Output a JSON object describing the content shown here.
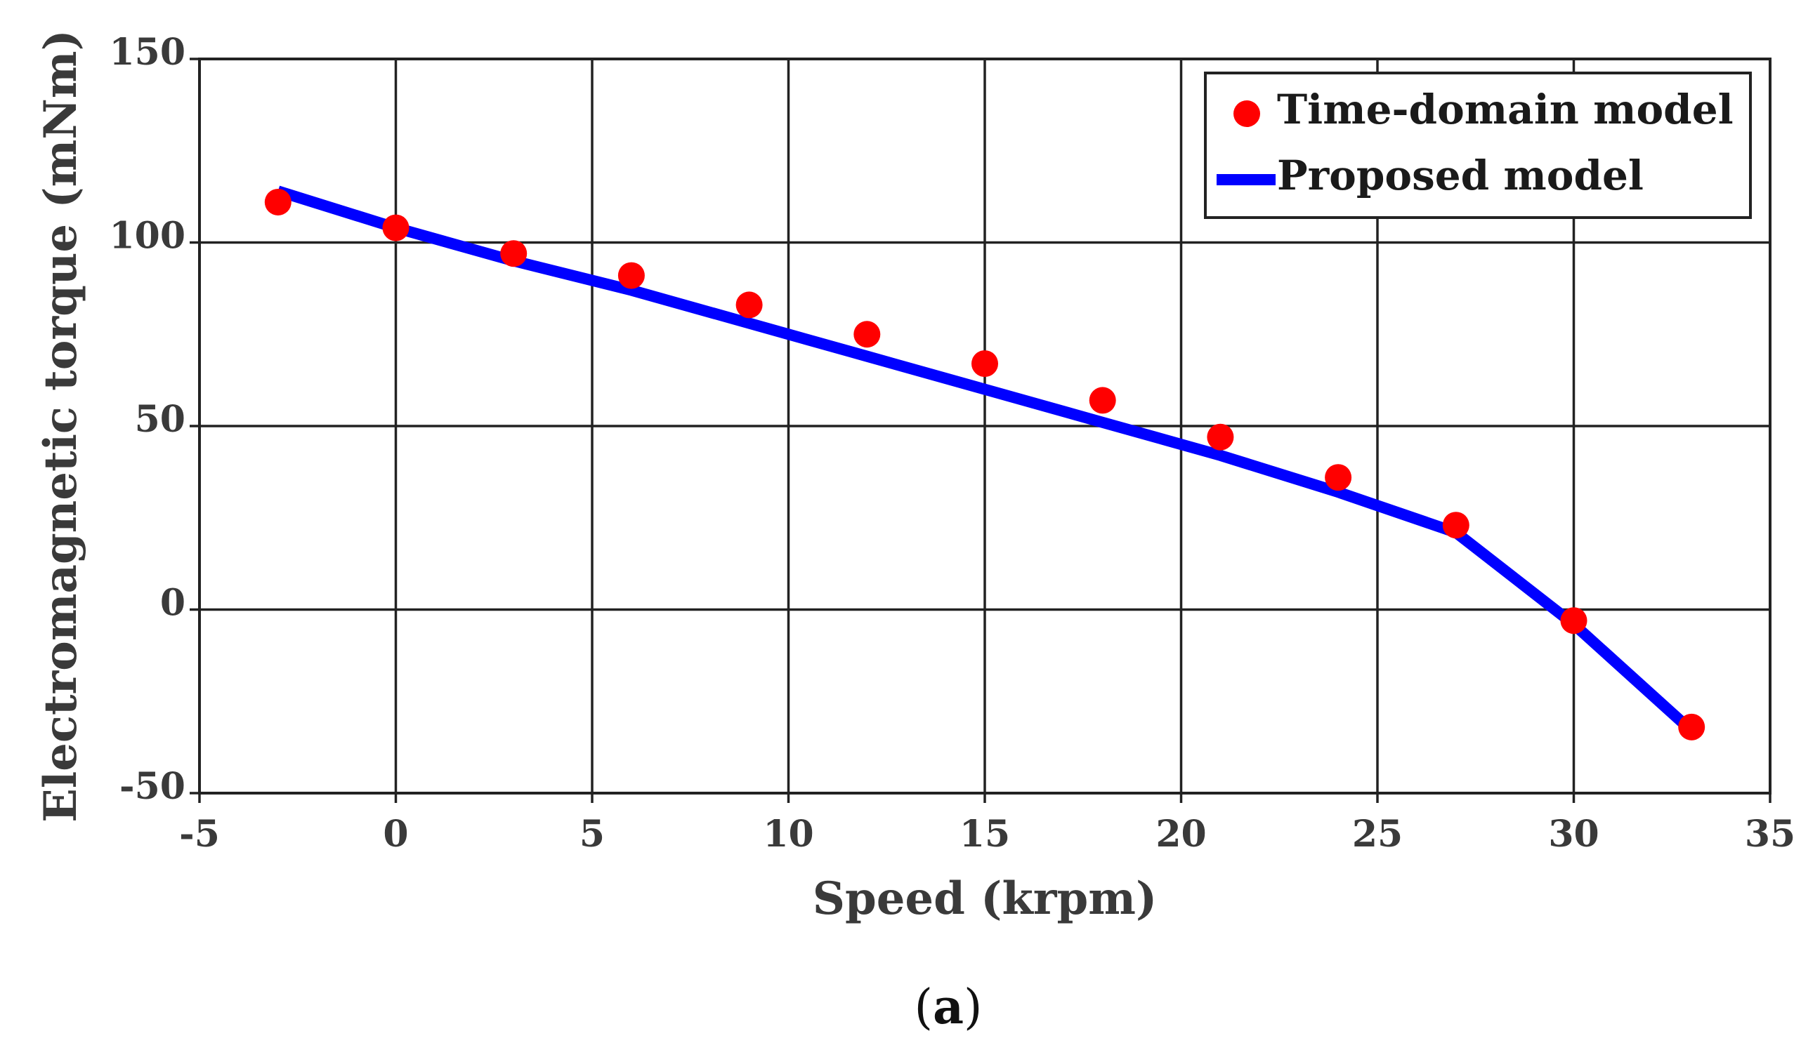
{
  "chart_data": {
    "type": "line",
    "xlabel": "Speed (krpm)",
    "ylabel": "Electromagnetic torque (mNm)",
    "xlim": [
      -5,
      35
    ],
    "ylim": [
      -50,
      150
    ],
    "xticks": [
      -5,
      0,
      5,
      10,
      15,
      20,
      25,
      30,
      35
    ],
    "yticks": [
      -50,
      0,
      50,
      100,
      150
    ],
    "grid": true,
    "legend_position": "top-right",
    "series": [
      {
        "name": "Time-domain model",
        "style": "scatter",
        "color": "#ff0000",
        "x": [
          -3,
          0,
          3,
          6,
          9,
          12,
          15,
          18,
          21,
          24,
          27,
          30,
          33
        ],
        "y": [
          111,
          104,
          97,
          91,
          83,
          75,
          67,
          57,
          47,
          36,
          23,
          -3,
          -32
        ]
      },
      {
        "name": "Proposed model",
        "style": "line",
        "color": "#0000ff",
        "x": [
          -3,
          0,
          3,
          6,
          9,
          12,
          15,
          18,
          21,
          24,
          27,
          30,
          33
        ],
        "y": [
          114,
          104,
          95,
          87,
          78,
          69,
          60,
          51,
          42,
          32,
          21,
          -4,
          -33
        ]
      }
    ],
    "caption_open": "(",
    "caption_letter": "a",
    "caption_close": ")"
  }
}
